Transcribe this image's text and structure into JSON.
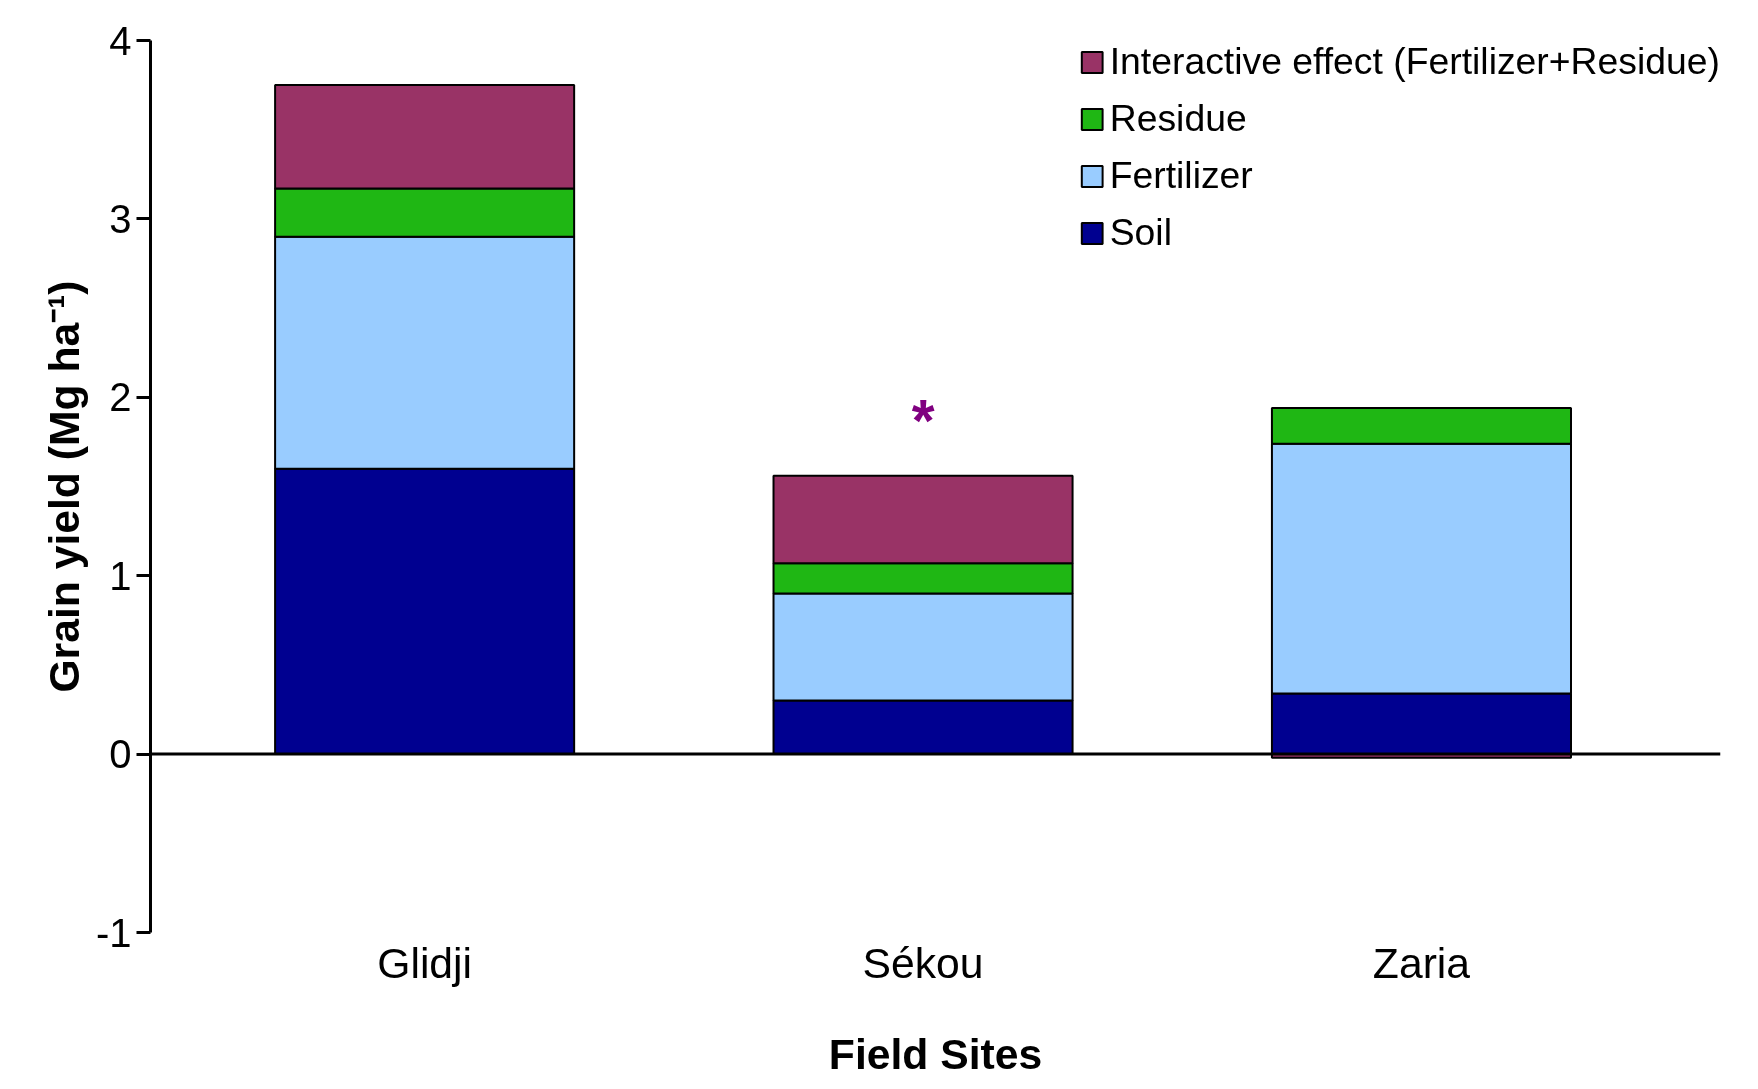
{
  "chart_data": {
    "type": "bar",
    "stacked": true,
    "xlabel": "Field Sites",
    "ylabel": "Grain yield (Mg ha⁻¹)",
    "categories": [
      "Glidji",
      "Sékou",
      "Zaria"
    ],
    "series": [
      {
        "name": "Soil",
        "color": "#000090",
        "values": [
          1.6,
          0.3,
          0.34
        ]
      },
      {
        "name": "Fertilizer",
        "color": "#99ccff",
        "values": [
          1.3,
          0.6,
          1.4
        ]
      },
      {
        "name": "Residue",
        "color": "#1fb714",
        "values": [
          0.27,
          0.17,
          0.2
        ]
      },
      {
        "name": "Interactive effect (Fertilizer+Residue)",
        "color": "#993366",
        "values": [
          0.58,
          0.49,
          -0.02
        ]
      }
    ],
    "annotations": [
      "*"
    ],
    "ref_lines": [
      {
        "axis": "y",
        "value": 0,
        "color": "#000000"
      }
    ],
    "ylim": [
      -1,
      4
    ],
    "yticks": [
      -1,
      0,
      1,
      2,
      3,
      4
    ],
    "grid": false,
    "legend": "top right"
  }
}
